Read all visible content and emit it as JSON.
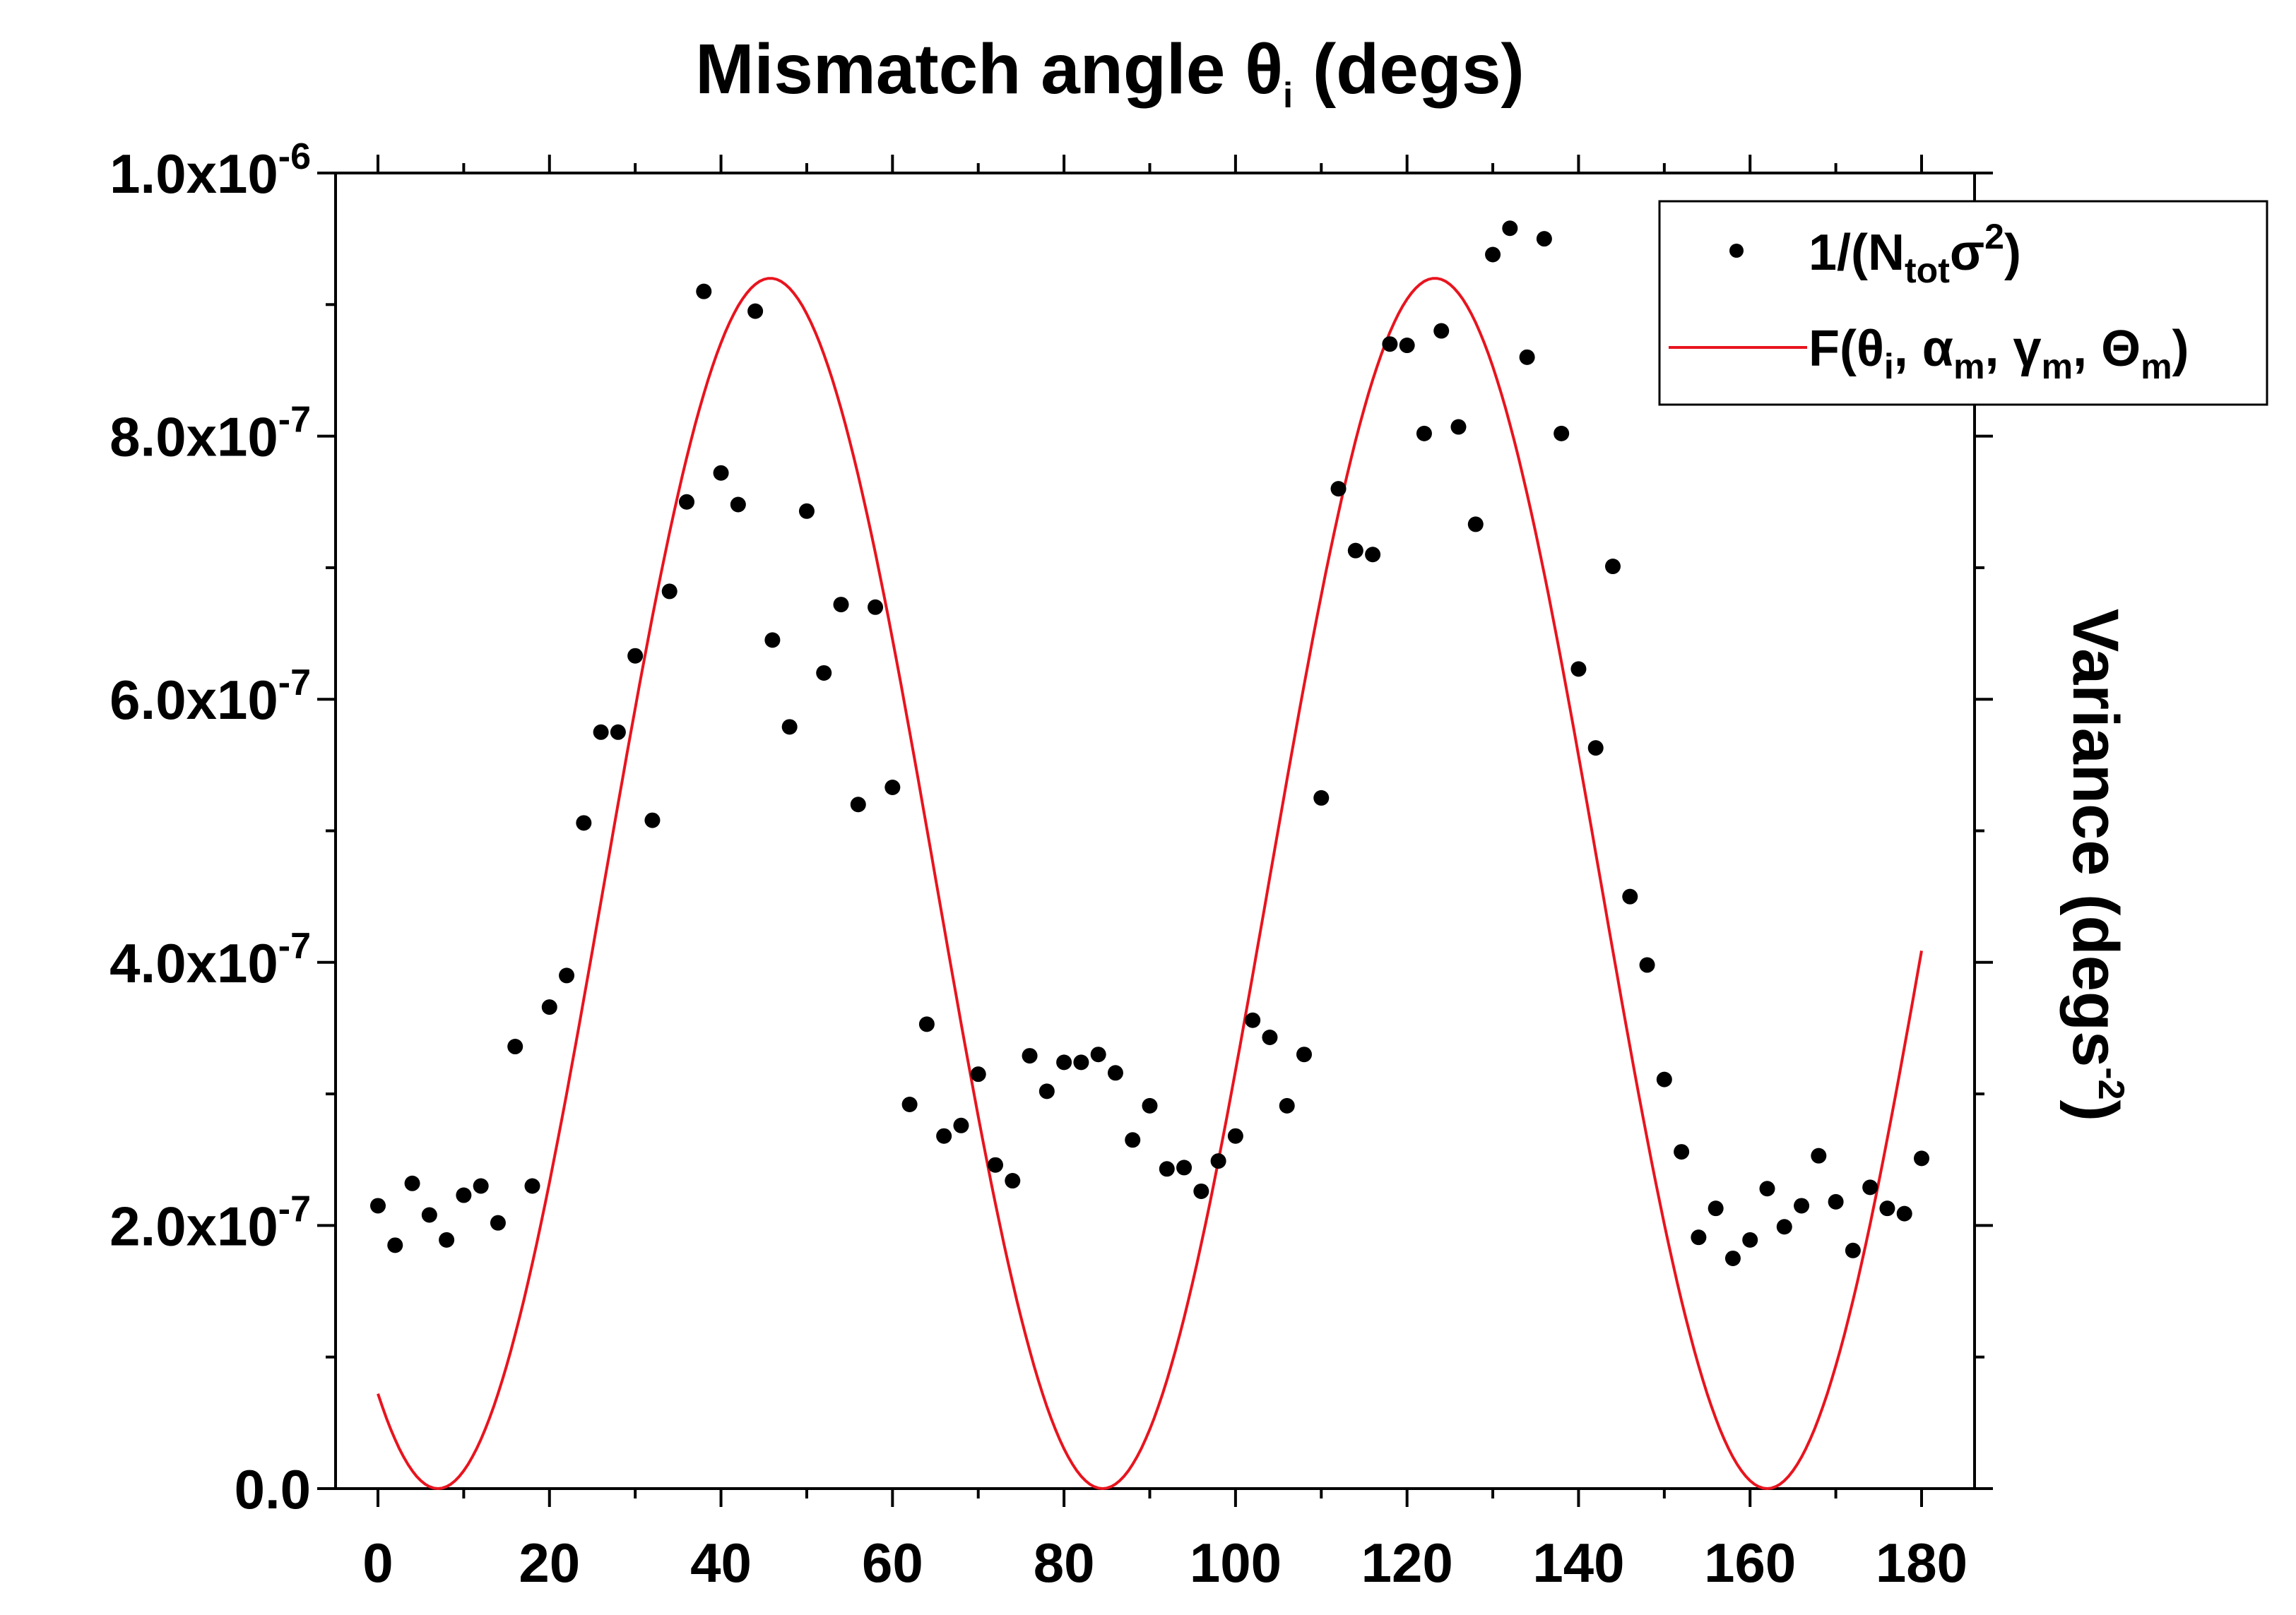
{
  "chart_data": {
    "type": "scatter",
    "title": {
      "prefix": "Mismatch angle ",
      "symbol": "θ",
      "sub": "i",
      "suffix": " (degs)"
    },
    "ylabel": {
      "prefix": "Variance (degs",
      "sup": "-2",
      "suffix": ")"
    },
    "xlim": [
      0,
      180
    ],
    "ylim": [
      0,
      1e-06
    ],
    "x_ticks": [
      0,
      20,
      40,
      60,
      80,
      100,
      120,
      140,
      160,
      180
    ],
    "x_tick_labels": [
      "0",
      "20",
      "40",
      "60",
      "80",
      "100",
      "120",
      "140",
      "160",
      "180"
    ],
    "y_ticks": [
      0,
      2e-07,
      4e-07,
      6e-07,
      8e-07,
      1e-06
    ],
    "y_tick_labels": [
      {
        "mant": "0.0",
        "exp": ""
      },
      {
        "mant": "2.0x10",
        "exp": "-7"
      },
      {
        "mant": "4.0x10",
        "exp": "-7"
      },
      {
        "mant": "6.0x10",
        "exp": "-7"
      },
      {
        "mant": "8.0x10",
        "exp": "-7"
      },
      {
        "mant": "1.0x10",
        "exp": "-6"
      }
    ],
    "legend_position": "top-right",
    "series": [
      {
        "name": "1/(N_tot σ^2)",
        "legend": {
          "pre": "1/(N",
          "sub": "tot",
          "mid": "σ",
          "sup": "2",
          "post": ")"
        },
        "style": "points",
        "color": "#000000",
        "x": [
          0,
          2,
          4,
          6,
          8,
          10,
          12,
          14,
          16,
          18,
          20,
          22,
          24,
          26,
          28,
          30,
          32,
          34,
          36,
          38,
          40,
          42,
          44,
          46,
          48,
          50,
          52,
          54,
          56,
          58,
          60,
          62,
          64,
          66,
          68,
          70,
          72,
          74,
          76,
          78,
          80,
          82,
          84,
          86,
          88,
          90,
          92,
          94,
          96,
          98,
          100,
          102,
          104,
          106,
          108,
          110,
          112,
          114,
          116,
          118,
          120,
          122,
          124,
          126,
          128,
          130,
          132,
          134,
          136,
          138,
          140,
          142,
          144,
          146,
          148,
          150,
          152,
          154,
          156,
          158,
          160,
          162,
          164,
          166,
          168,
          170,
          172,
          174,
          176,
          178,
          180
        ],
        "y": [
          2.15e-07,
          1.85e-07,
          2.32e-07,
          2.08e-07,
          1.89e-07,
          2.23e-07,
          2.3e-07,
          2.02e-07,
          3.36e-07,
          2.3e-07,
          3.66e-07,
          3.9e-07,
          5.06e-07,
          5.75e-07,
          5.75e-07,
          6.33e-07,
          5.08e-07,
          6.82e-07,
          7.5e-07,
          9.1e-07,
          7.72e-07,
          7.48e-07,
          8.95e-07,
          6.45e-07,
          5.79e-07,
          7.43e-07,
          6.2e-07,
          6.72e-07,
          5.2e-07,
          6.7e-07,
          5.33e-07,
          2.92e-07,
          3.53e-07,
          2.68e-07,
          2.76e-07,
          3.15e-07,
          2.46e-07,
          2.34e-07,
          3.29e-07,
          3.02e-07,
          3.24e-07,
          3.24e-07,
          3.3e-07,
          3.16e-07,
          2.65e-07,
          2.91e-07,
          2.43e-07,
          2.44e-07,
          2.26e-07,
          2.49e-07,
          2.68e-07,
          3.56e-07,
          3.43e-07,
          2.91e-07,
          3.3e-07,
          5.25e-07,
          7.6e-07,
          7.13e-07,
          7.1e-07,
          8.7e-07,
          8.69e-07,
          8.02e-07,
          8.8e-07,
          8.07e-07,
          7.33e-07,
          9.38e-07,
          9.58e-07,
          8.6e-07,
          9.5e-07,
          8.02e-07,
          6.23e-07,
          5.63e-07,
          7.01e-07,
          4.5e-07,
          3.98e-07,
          3.11e-07,
          2.56e-07,
          1.91e-07,
          2.13e-07,
          1.75e-07,
          1.89e-07,
          2.28e-07,
          1.99e-07,
          2.15e-07,
          2.53e-07,
          2.18e-07,
          1.81e-07,
          2.29e-07,
          2.13e-07,
          2.09e-07,
          2.51e-07
        ]
      },
      {
        "name": "F(θ_i, α_m, γ_m, Θ_m)",
        "legend": {
          "parts": [
            {
              "t": "F(θ"
            },
            {
              "t": "i",
              "sub": true
            },
            {
              "t": ", α"
            },
            {
              "t": "m",
              "sub": true
            },
            {
              "t": ", γ"
            },
            {
              "t": "m",
              "sub": true
            },
            {
              "t": ", Θ"
            },
            {
              "t": "m",
              "sub": true
            },
            {
              "t": ")"
            }
          ]
        },
        "style": "line",
        "color": "#e8141e",
        "model": "amplitude*sin^2((x - phase)*pi/period) + offset",
        "amplitude": 9.2e-07,
        "offset": 0,
        "phase": 84.5,
        "period": 77.5,
        "x_range": [
          0,
          180
        ]
      }
    ]
  }
}
